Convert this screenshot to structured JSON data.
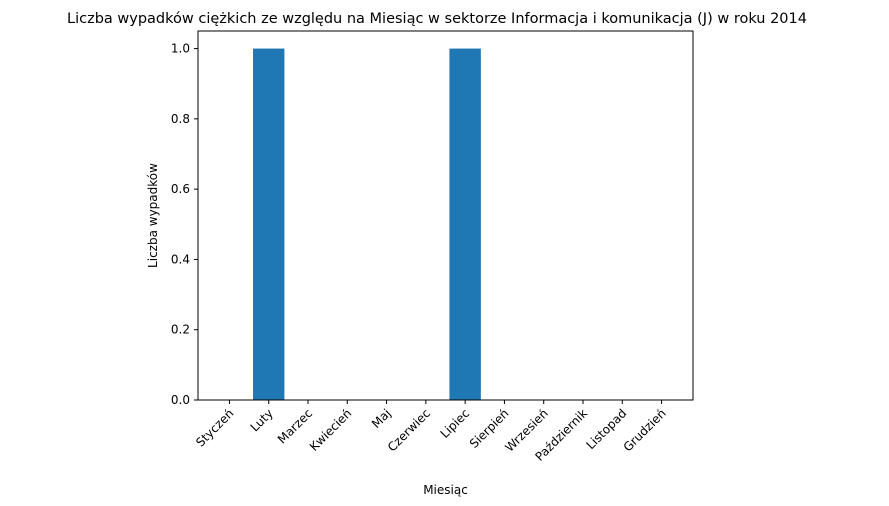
{
  "chart_data": {
    "type": "bar",
    "title": "Liczba wypadków ciężkich ze względu na Miesiąc w sektorze Informacja i komunikacja  (J)   w roku 2014",
    "xlabel": "Miesiąc",
    "ylabel": "Liczba wypadków",
    "categories": [
      "Styczeń",
      "Luty",
      "Marzec",
      "Kwiecień",
      "Maj",
      "Czerwiec",
      "Lipiec",
      "Sierpień",
      "Wrzesień",
      "Październik",
      "Listopad",
      "Grudzień"
    ],
    "values": [
      0,
      1,
      0,
      0,
      0,
      0,
      1,
      0,
      0,
      0,
      0,
      0
    ],
    "ylim": [
      0,
      1.05
    ],
    "yticks": [
      0.0,
      0.2,
      0.4,
      0.6,
      0.8,
      1.0
    ],
    "ytick_labels": [
      "0.0",
      "0.2",
      "0.4",
      "0.6",
      "0.8",
      "1.0"
    ],
    "grid": false,
    "bar_color": "#1f77b4"
  }
}
